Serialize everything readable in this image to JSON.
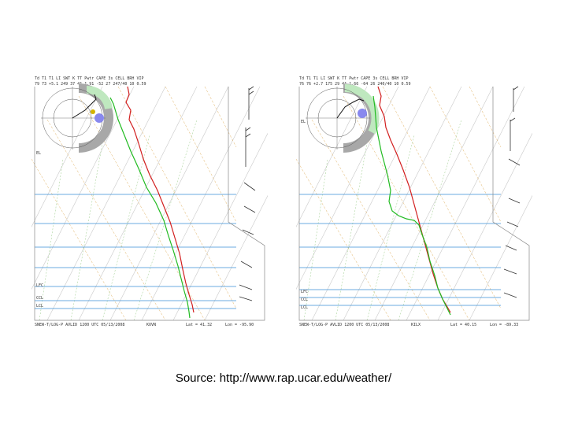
{
  "caption": "Source: http://www.rap.ucar.edu/weather/",
  "panels": [
    {
      "id": "left",
      "header_labels": "Td T1  T1  LI  SWT  K  TT  Pwtr  CAPE  3s  CELL  BRH  VIP",
      "header_values": "79  73 +5.1 249 37 41  1.91  -52  27 247/40  10  0.59",
      "footer_left": "SNEW-T/LOG-P AVLID 1200 UTC 05/13/2008",
      "footer_station": "KOVN",
      "footer_lat": "Lat = 41.32",
      "footer_lon": "Lon = -95.90",
      "level_labels": [
        "EL",
        "LFC",
        "CCL",
        "LCL"
      ]
    },
    {
      "id": "right",
      "header_labels": "Td T1  T1  LI  SWT  K  TT  Pwtr  CAPE  3s  CELL  BRH  VIP",
      "header_values": "76  76 +2.7 175 29 41  1.66  -64  26 240/40  10  0.59",
      "footer_left": "SNEW-T/LOG-P AVLID 1200 UTC 05/13/2008",
      "footer_station": "KILX",
      "footer_lat": "Lat = 40.15",
      "footer_lon": "Lon = -89.33",
      "level_labels": [
        "EL",
        "LFC",
        "CCL",
        "LCL"
      ]
    }
  ],
  "colors": {
    "temperature": "#d21f1f",
    "dewpoint": "#22bb22",
    "isobar": "#3a8fd6",
    "isotherm": "#c9c9c9",
    "dry_adiabat": "#e0b060",
    "moist_adiabat": "#99cc88",
    "hodograph_ring_gray": "#a8a8a8",
    "hodograph_ring_green": "#bfe8bf",
    "storm_motion": "#8888ee"
  },
  "icons": {
    "wind_barbs": "wind-barb-icon",
    "storm_motion": "storm-motion-dot-icon"
  }
}
